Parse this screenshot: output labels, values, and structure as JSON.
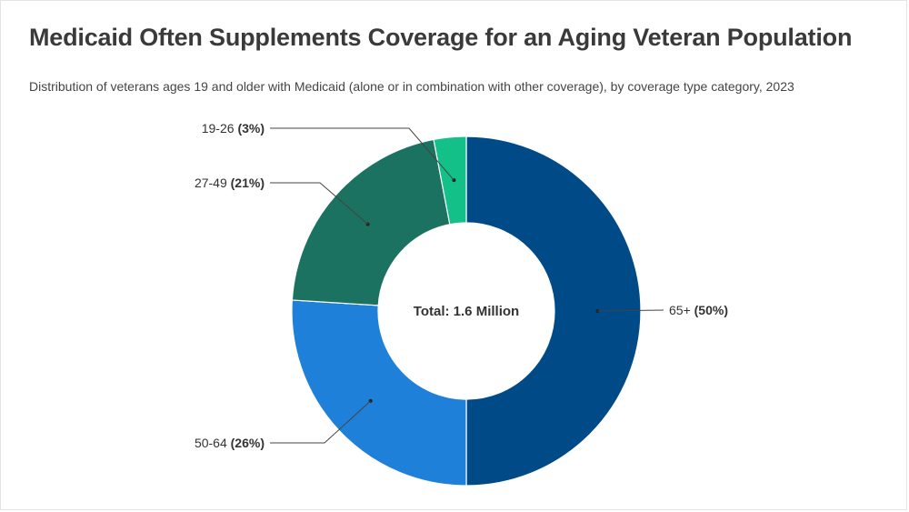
{
  "chart_data": {
    "type": "pie",
    "title": "Medicaid Often Supplements Coverage for an Aging Veteran Population",
    "subtitle": "Distribution of veterans ages 19 and older with Medicaid (alone or in combination with other coverage), by coverage type category, 2023",
    "center_label": "Total: 1.6 Million",
    "donut": true,
    "slices": [
      {
        "label": "65+",
        "value": 50,
        "pct_label": "(50%)",
        "color": "#004a87"
      },
      {
        "label": "50-64",
        "value": 26,
        "pct_label": "(26%)",
        "color": "#1e80d8"
      },
      {
        "label": "27-49",
        "value": 21,
        "pct_label": "(21%)",
        "color": "#1b7260"
      },
      {
        "label": "19-26",
        "value": 3,
        "pct_label": "(3%)",
        "color": "#12c088"
      }
    ]
  }
}
